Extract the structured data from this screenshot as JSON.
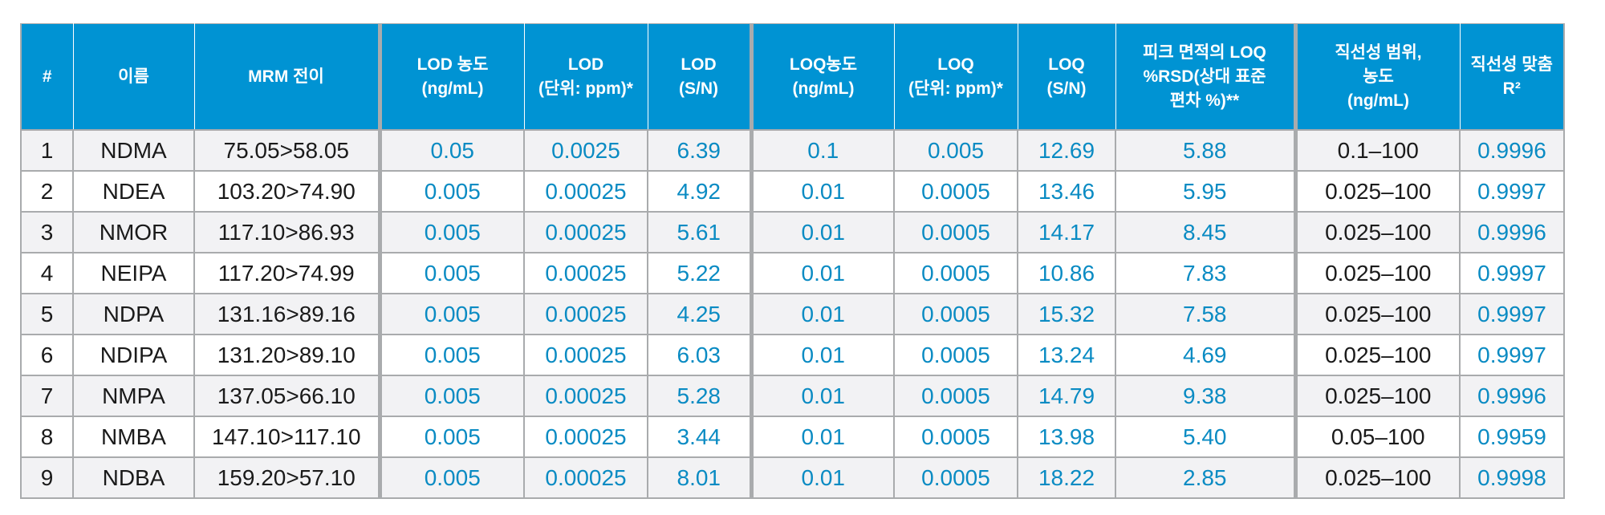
{
  "table": {
    "headers": [
      "#",
      "이름",
      "MRM 전이",
      "LOD 농도\n(ng/mL)",
      "LOD\n(단위: ppm)*",
      "LOD\n(S/N)",
      "LOQ농도\n(ng/mL)",
      "LOQ\n(단위: ppm)*",
      "LOQ\n(S/N)",
      "피크 면적의 LOQ\n%RSD(상대 표준\n편차 %)**",
      "직선성 범위,\n농도\n(ng/mL)",
      "직선성 맞춤\nR²"
    ],
    "rows": [
      [
        "1",
        "NDMA",
        "75.05>58.05",
        "0.05",
        "0.0025",
        "6.39",
        "0.1",
        "0.005",
        "12.69",
        "5.88",
        "0.1–100",
        "0.9996"
      ],
      [
        "2",
        "NDEA",
        "103.20>74.90",
        "0.005",
        "0.00025",
        "4.92",
        "0.01",
        "0.0005",
        "13.46",
        "5.95",
        "0.025–100",
        "0.9997"
      ],
      [
        "3",
        "NMOR",
        "117.10>86.93",
        "0.005",
        "0.00025",
        "5.61",
        "0.01",
        "0.0005",
        "14.17",
        "8.45",
        "0.025–100",
        "0.9996"
      ],
      [
        "4",
        "NEIPA",
        "117.20>74.99",
        "0.005",
        "0.00025",
        "5.22",
        "0.01",
        "0.0005",
        "10.86",
        "7.83",
        "0.025–100",
        "0.9997"
      ],
      [
        "5",
        "NDPA",
        "131.16>89.16",
        "0.005",
        "0.00025",
        "4.25",
        "0.01",
        "0.0005",
        "15.32",
        "7.58",
        "0.025–100",
        "0.9997"
      ],
      [
        "6",
        "NDIPA",
        "131.20>89.10",
        "0.005",
        "0.00025",
        "6.03",
        "0.01",
        "0.0005",
        "13.24",
        "4.69",
        "0.025–100",
        "0.9997"
      ],
      [
        "7",
        "NMPA",
        "137.05>66.10",
        "0.005",
        "0.00025",
        "5.28",
        "0.01",
        "0.0005",
        "14.79",
        "9.38",
        "0.025–100",
        "0.9996"
      ],
      [
        "8",
        "NMBA",
        "147.10>117.10",
        "0.005",
        "0.00025",
        "3.44",
        "0.01",
        "0.0005",
        "13.98",
        "5.40",
        "0.05–100",
        "0.9959"
      ],
      [
        "9",
        "NDBA",
        "159.20>57.10",
        "0.005",
        "0.00025",
        "8.01",
        "0.01",
        "0.0005",
        "18.22",
        "2.85",
        "0.025–100",
        "0.9998"
      ]
    ]
  },
  "colors": {
    "header_bg": "#0093d3",
    "header_text": "#ffffff",
    "value_blue": "#0a8bc3",
    "text_dark": "#1a1a1a",
    "grid": "#a9abad",
    "row_shade": "#f2f2f4"
  }
}
